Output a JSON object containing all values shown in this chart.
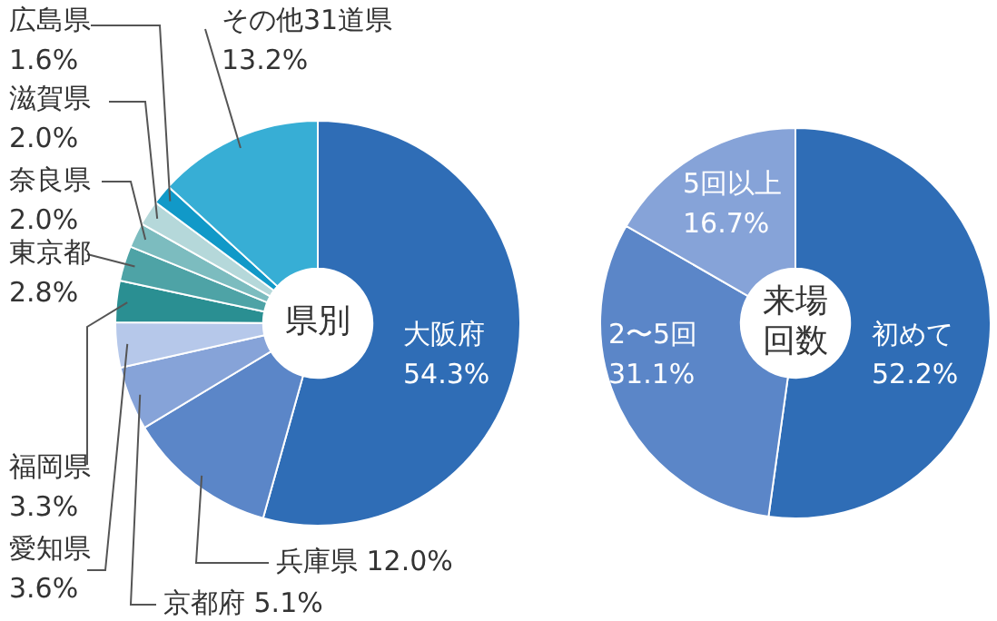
{
  "chart_data": [
    {
      "type": "donut",
      "title": "県別",
      "categories": [
        "大阪府",
        "兵庫県",
        "京都府",
        "愛知県",
        "福岡県",
        "東京都",
        "奈良県",
        "滋賀県",
        "広島県",
        "その他31道県"
      ],
      "values": [
        54.3,
        12.0,
        5.1,
        3.6,
        3.3,
        2.8,
        2.0,
        2.0,
        1.6,
        13.2
      ],
      "value_labels": [
        "54.3%",
        "12.0%",
        "5.1%",
        "3.6%",
        "3.3%",
        "2.8%",
        "2.0%",
        "2.0%",
        "1.6%",
        "13.2%"
      ],
      "colors": [
        "#2f6db6",
        "#5b86c8",
        "#86a3d8",
        "#b6c8ea",
        "#2a8f92",
        "#4ea3a6",
        "#7cbcbf",
        "#b5d8da",
        "#1199c8",
        "#37aed5"
      ]
    },
    {
      "type": "donut",
      "title": "来場回数",
      "categories": [
        "初めて",
        "2〜5回",
        "5回以上"
      ],
      "values": [
        52.2,
        31.1,
        16.7
      ],
      "value_labels": [
        "52.2%",
        "31.1%",
        "16.7%"
      ],
      "colors": [
        "#2f6db6",
        "#5b86c8",
        "#86a3d8"
      ]
    }
  ]
}
